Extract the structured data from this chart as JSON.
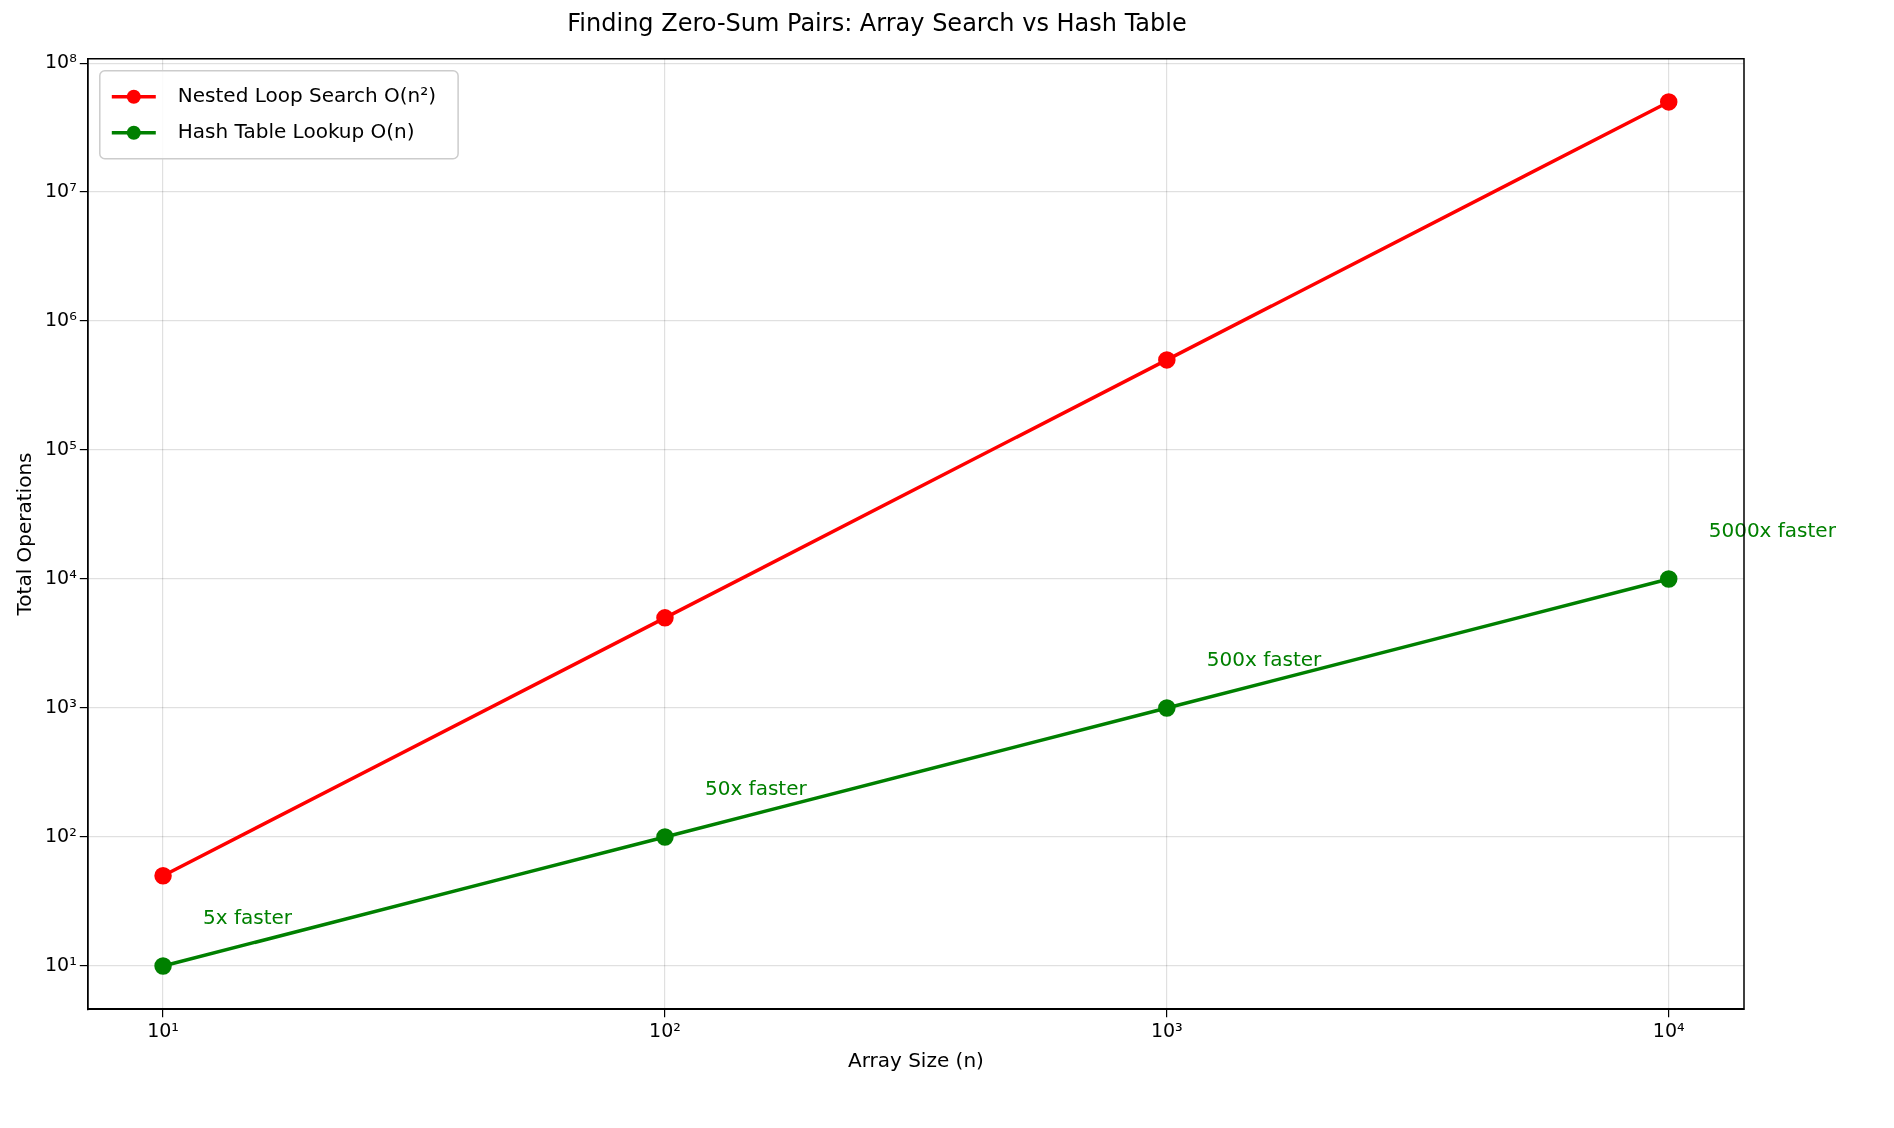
{
  "chart_data": {
    "type": "line",
    "title": "Finding Zero-Sum Pairs: Array Search vs Hash Table",
    "xlabel": "Array Size (n)",
    "ylabel": "Total Operations",
    "x": [
      10,
      100,
      1000,
      10000
    ],
    "series": [
      {
        "name": "Nested Loop Search O(n²)",
        "color": "#ff0000",
        "values": [
          50,
          5000,
          500000,
          50000000
        ]
      },
      {
        "name": "Hash Table Lookup O(n)",
        "color": "#008000",
        "values": [
          10,
          100,
          1000,
          10000
        ]
      }
    ],
    "log": "xy",
    "xlim": [
      7.08,
      14125
    ],
    "ylim": [
      4.62,
      108000000
    ],
    "xticks": [
      {
        "value": 10,
        "label": "10¹"
      },
      {
        "value": 100,
        "label": "10²"
      },
      {
        "value": 1000,
        "label": "10³"
      },
      {
        "value": 10000,
        "label": "10⁴"
      }
    ],
    "yticks": [
      {
        "value": 10,
        "label": "10¹"
      },
      {
        "value": 100,
        "label": "10²"
      },
      {
        "value": 1000,
        "label": "10³"
      },
      {
        "value": 10000,
        "label": "10⁴"
      },
      {
        "value": 100000,
        "label": "10⁵"
      },
      {
        "value": 1000000,
        "label": "10⁶"
      },
      {
        "value": 10000000,
        "label": "10⁷"
      },
      {
        "value": 100000000,
        "label": "10⁸"
      }
    ],
    "annotations": [
      {
        "text": "5x faster",
        "x": 10,
        "y": 10
      },
      {
        "text": "50x faster",
        "x": 100,
        "y": 100
      },
      {
        "text": "500x faster",
        "x": 1000,
        "y": 1000
      },
      {
        "text": "5000x faster",
        "x": 10000,
        "y": 10000
      }
    ],
    "grid": true,
    "legend": "top left",
    "marker": "circle",
    "line_style": "solid"
  }
}
